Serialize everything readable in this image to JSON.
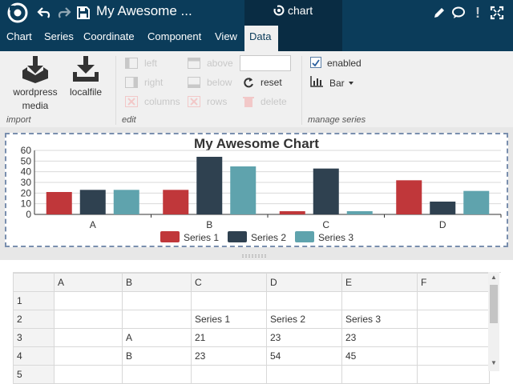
{
  "window": {
    "title": "My Awesome ...",
    "active_tab": "chart"
  },
  "menu": {
    "items": [
      "Chart",
      "Series",
      "Coordinate",
      "Component",
      "View",
      "Data"
    ],
    "active": "Data"
  },
  "ribbon": {
    "import": {
      "group_label": "import",
      "wordpress_line1": "wordpress",
      "wordpress_line2": "media",
      "localfile": "localfile"
    },
    "edit": {
      "group_label": "edit",
      "left": "left",
      "right": "right",
      "columns": "columns",
      "above": "above",
      "below": "below",
      "rows": "rows",
      "reset": "reset",
      "delete": "delete",
      "input_value": ""
    },
    "manage": {
      "group_label": "manage series",
      "enabled_label": "enabled",
      "enabled": true,
      "chart_type": "Bar"
    }
  },
  "chart_data": {
    "type": "bar",
    "title": "My Awesome Chart",
    "categories": [
      "A",
      "B",
      "C",
      "D"
    ],
    "series": [
      {
        "name": "Series 1",
        "values": [
          21,
          23,
          3,
          32
        ],
        "color": "#c0373a"
      },
      {
        "name": "Series 2",
        "values": [
          23,
          54,
          43,
          12
        ],
        "color": "#2f4150"
      },
      {
        "name": "Series 3",
        "values": [
          23,
          45,
          3,
          22
        ],
        "color": "#5fa3ad"
      }
    ],
    "ylim": [
      0,
      60
    ],
    "yticks": [
      "0",
      "10",
      "20",
      "30",
      "40",
      "50",
      "60"
    ],
    "grid": true,
    "legend": "bottom"
  },
  "sheet": {
    "columns": [
      "",
      "A",
      "B",
      "C",
      "D",
      "E",
      "F"
    ],
    "rows": [
      [
        "1",
        "",
        "",
        "",
        "",
        "",
        ""
      ],
      [
        "2",
        "",
        "",
        "Series 1",
        "Series 2",
        "Series 3",
        ""
      ],
      [
        "3",
        "",
        "A",
        "21",
        "23",
        "23",
        ""
      ],
      [
        "4",
        "",
        "B",
        "23",
        "54",
        "45",
        ""
      ],
      [
        "5",
        "",
        "",
        "",
        "",
        "",
        ""
      ]
    ]
  },
  "colors": {
    "topbar": "#0b3c5a",
    "tab_dark": "#092c43",
    "ribbon_bg": "#f0f0f0"
  }
}
